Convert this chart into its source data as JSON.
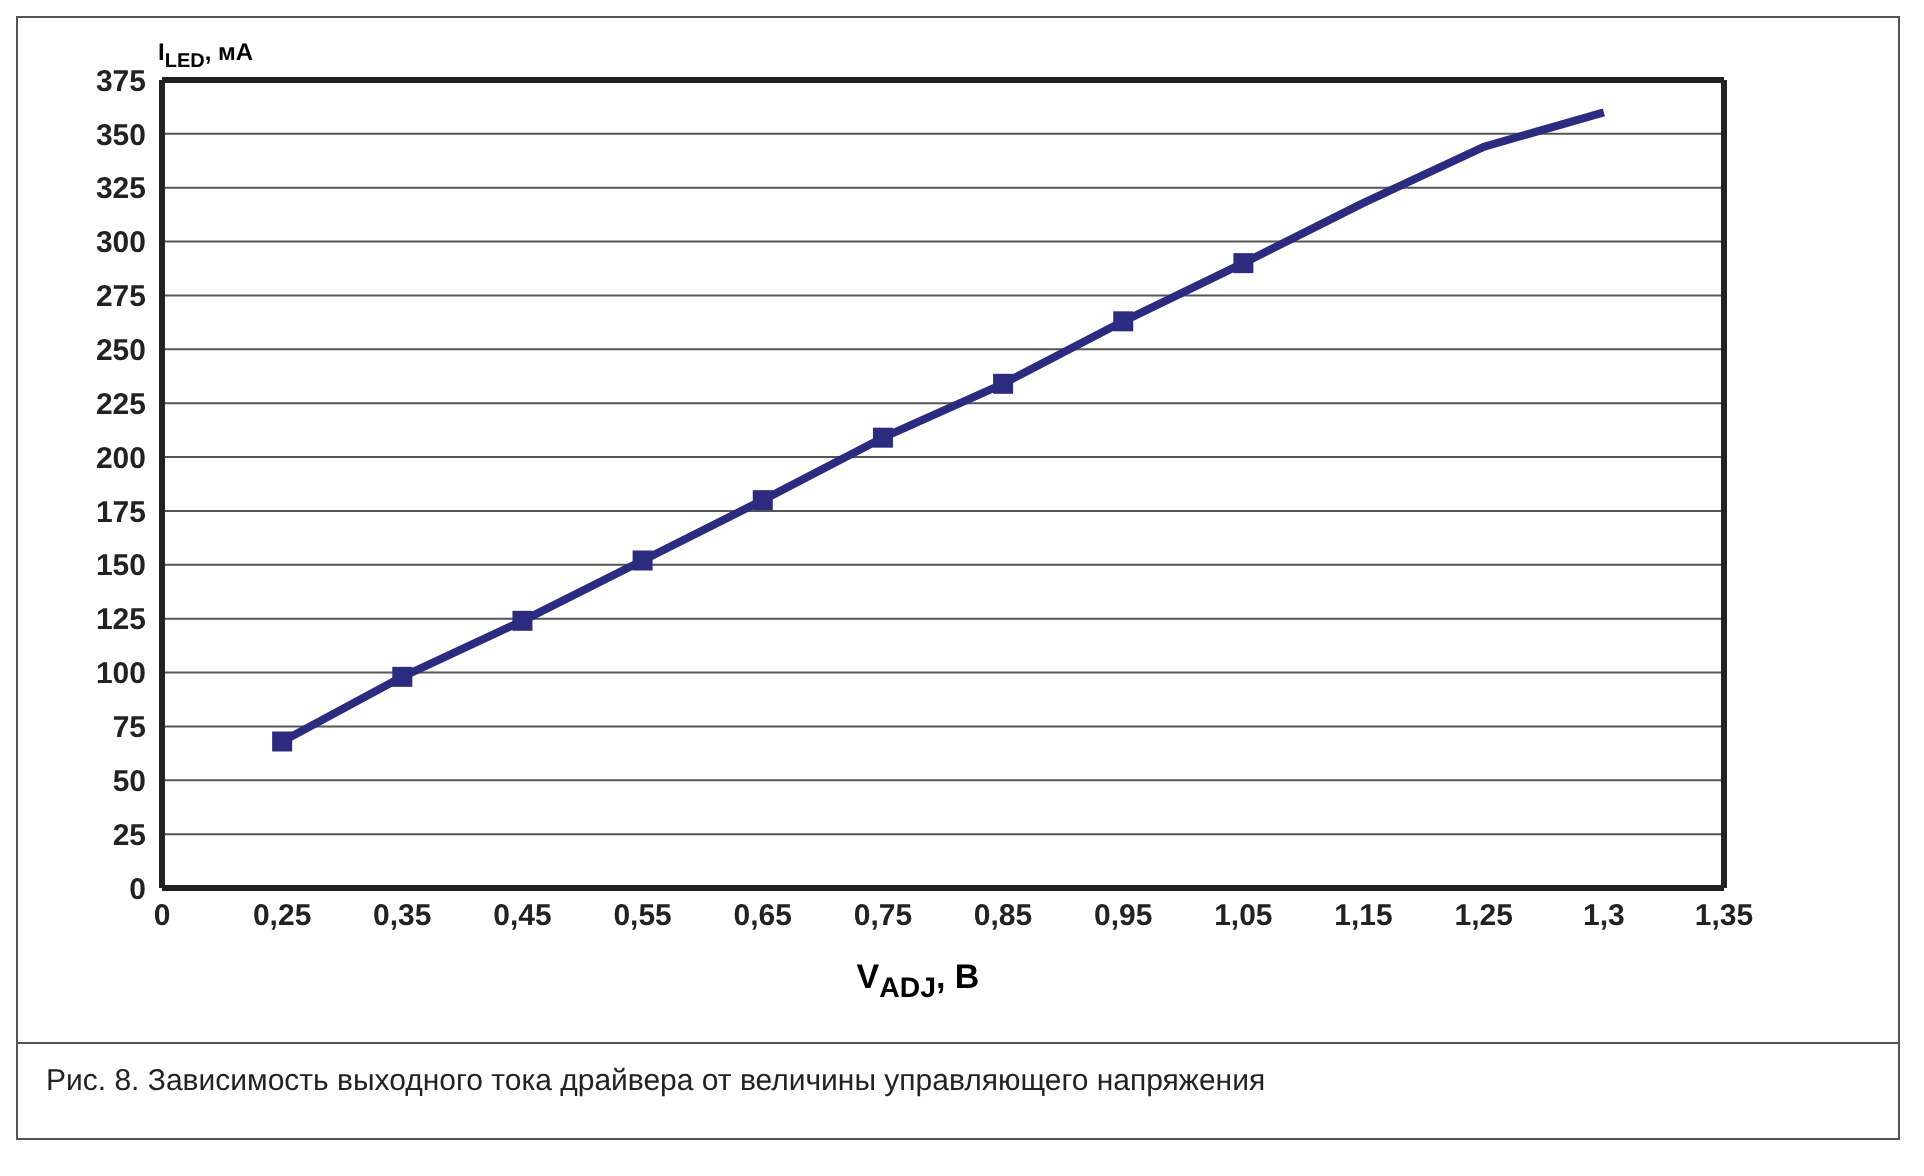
{
  "chart_data": {
    "type": "line",
    "xlabel": "V$_{ADJ}$, В",
    "ylabel": "I$_{LED}$, мА",
    "annotations": [
      "Рис. 8. Зависимость выходного тока драйвера от величины управляющего напряжения"
    ],
    "categories": [
      "0",
      "0,25",
      "0,35",
      "0,45",
      "0,55",
      "0,65",
      "0,75",
      "0,85",
      "0,95",
      "1,05",
      "1,15",
      "1,25",
      "1,3",
      "1,35"
    ],
    "series": [
      {
        "color": "#2b2b7f",
        "marker": "square",
        "values": [
          null,
          68,
          98,
          124,
          152,
          180,
          209,
          234,
          263,
          290,
          null,
          null,
          null,
          null
        ]
      },
      {
        "color": "#2b2b7f",
        "marker": "none",
        "values": [
          null,
          null,
          null,
          null,
          null,
          null,
          null,
          null,
          null,
          290,
          318,
          344,
          360,
          null
        ]
      }
    ],
    "ylim": [
      0,
      375
    ],
    "yticks": [
      0,
      25,
      50,
      75,
      100,
      125,
      150,
      175,
      200,
      225,
      250,
      275,
      300,
      325,
      350,
      375
    ],
    "grid": "y",
    "legend": false,
    "line_style": "solid"
  }
}
